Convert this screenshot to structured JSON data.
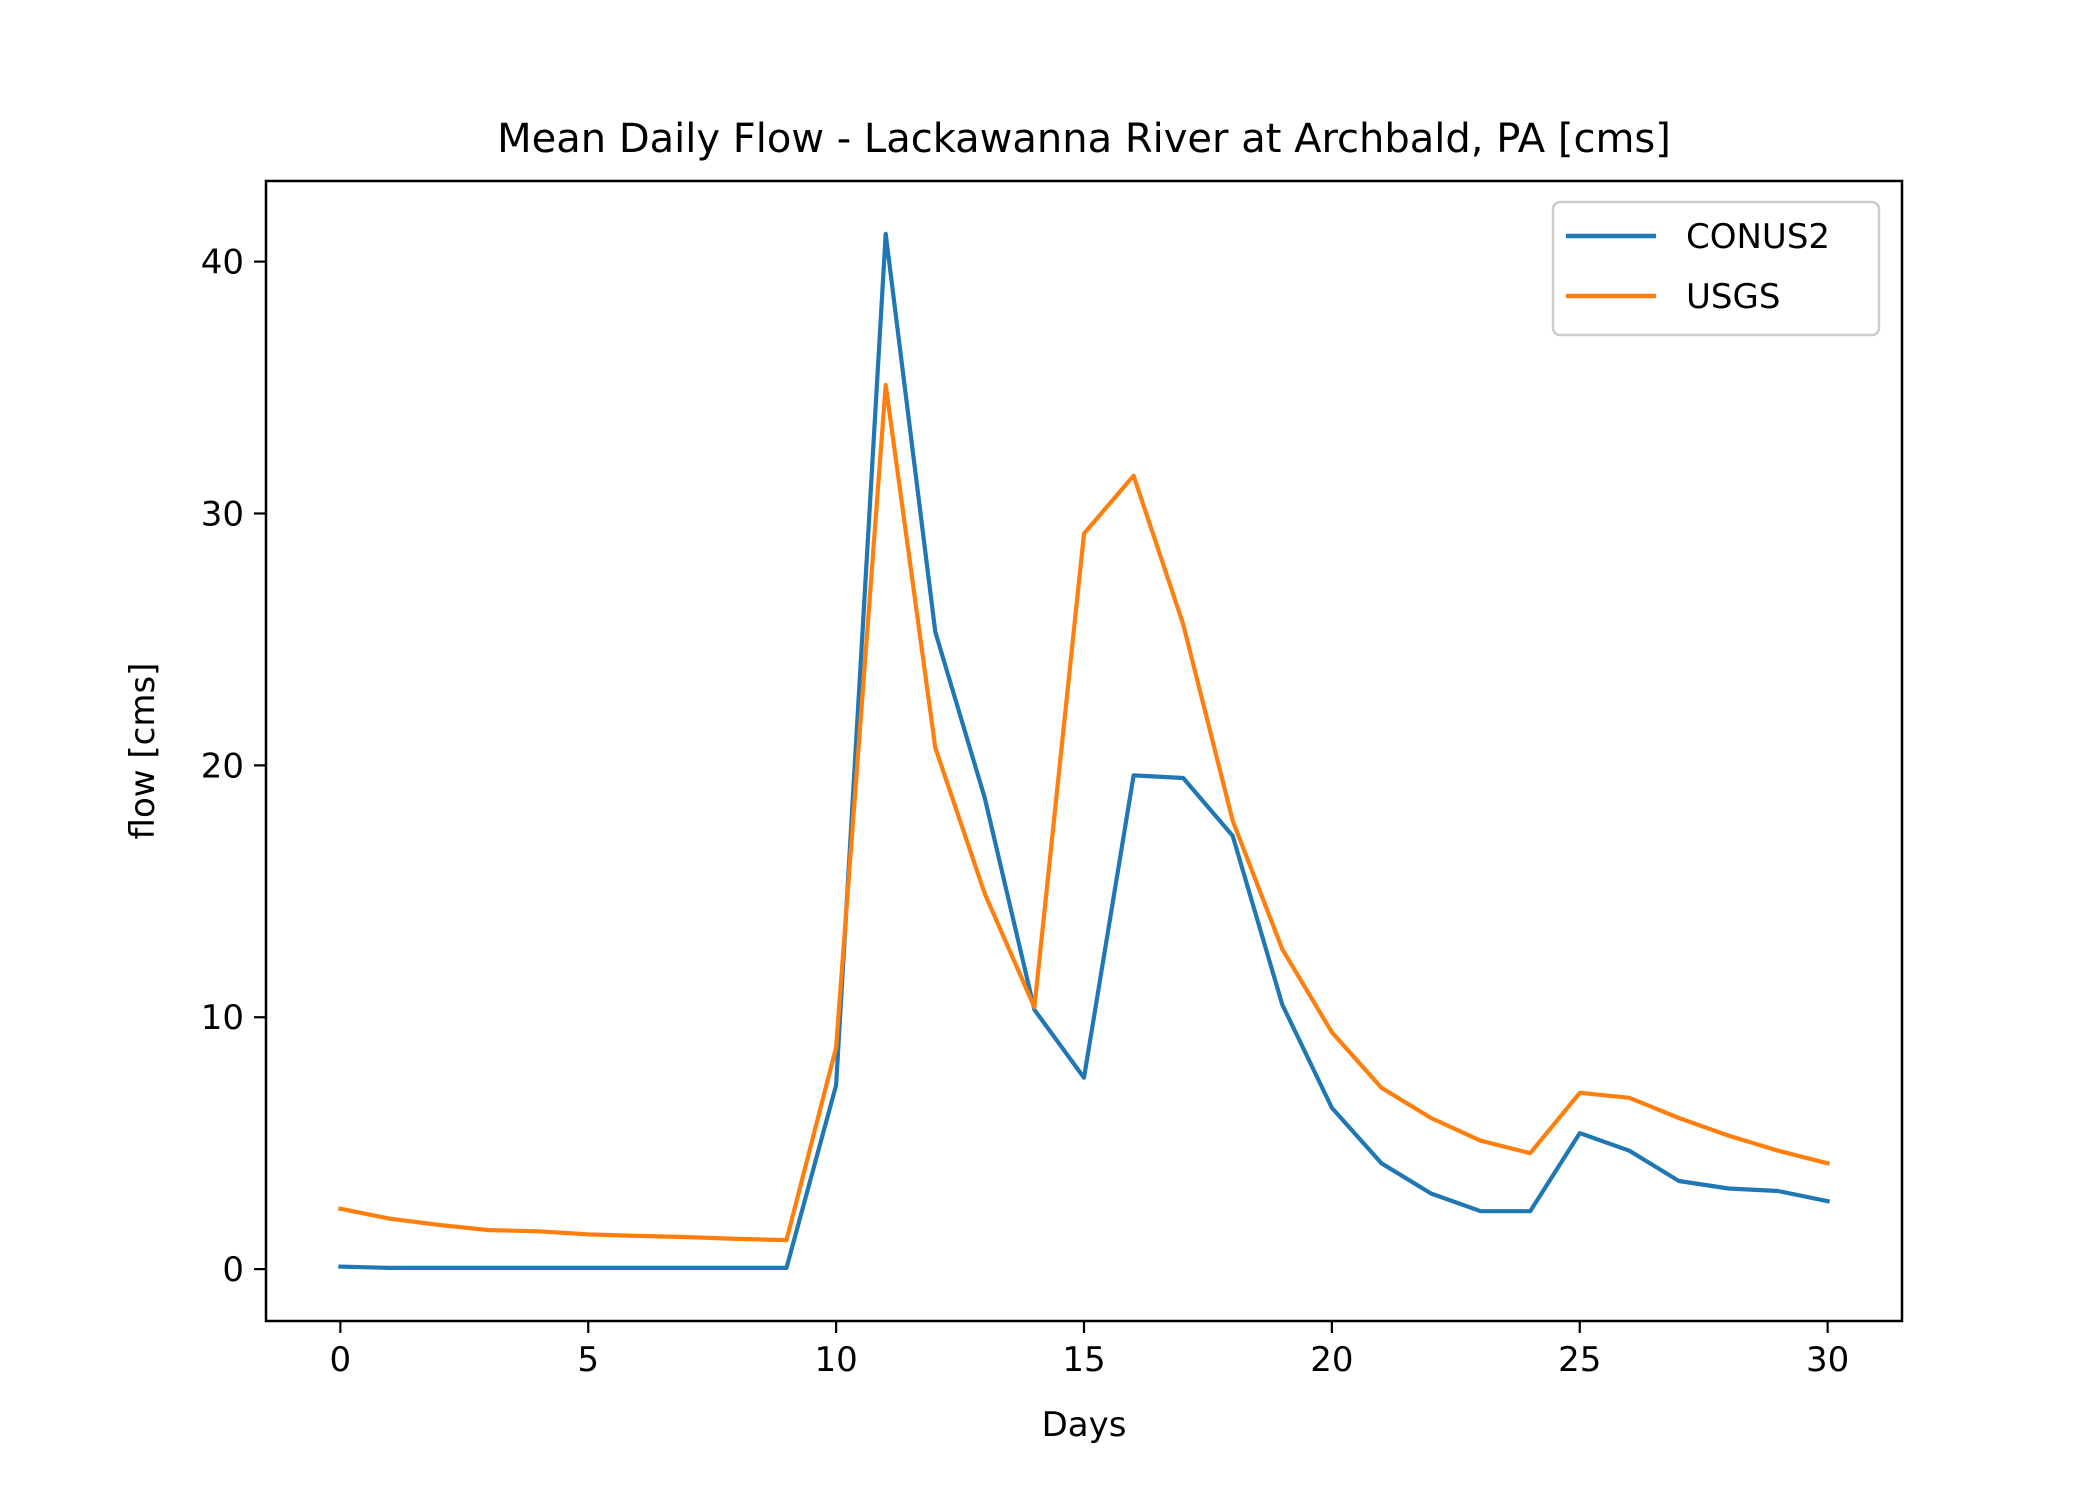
{
  "chart_data": {
    "type": "line",
    "title": "Mean Daily Flow - Lackawanna River at Archbald, PA [cms]",
    "xlabel": "Days",
    "ylabel": "flow [cms]",
    "xlim": [
      -1.5,
      31.5
    ],
    "ylim": [
      -2.06,
      43.2
    ],
    "xticks": [
      0,
      5,
      10,
      15,
      20,
      25,
      30
    ],
    "yticks": [
      0,
      10,
      20,
      30,
      40
    ],
    "grid": false,
    "legend_position": "top-right",
    "x": [
      0,
      1,
      2,
      3,
      4,
      5,
      6,
      7,
      8,
      9,
      10,
      11,
      12,
      13,
      14,
      15,
      16,
      17,
      18,
      19,
      20,
      21,
      22,
      23,
      24,
      25,
      26,
      27,
      28,
      29,
      30
    ],
    "series": [
      {
        "name": "CONUS2",
        "color": "#1f77b4",
        "values": [
          0.1,
          0.05,
          0.05,
          0.05,
          0.05,
          0.05,
          0.05,
          0.05,
          0.05,
          0.05,
          7.3,
          41.1,
          25.3,
          18.7,
          10.3,
          7.6,
          19.6,
          19.5,
          17.2,
          10.5,
          6.4,
          4.2,
          3.0,
          2.3,
          2.3,
          5.4,
          4.7,
          3.5,
          3.2,
          3.1,
          2.7
        ]
      },
      {
        "name": "USGS",
        "color": "#ff7f0e",
        "values": [
          2.4,
          2.0,
          1.75,
          1.55,
          1.5,
          1.38,
          1.32,
          1.27,
          1.2,
          1.15,
          8.8,
          35.1,
          20.7,
          14.9,
          10.4,
          29.2,
          31.5,
          25.6,
          17.8,
          12.7,
          9.4,
          7.2,
          6.0,
          5.1,
          4.6,
          7.0,
          6.8,
          6.0,
          5.3,
          4.7,
          4.2
        ]
      }
    ]
  }
}
